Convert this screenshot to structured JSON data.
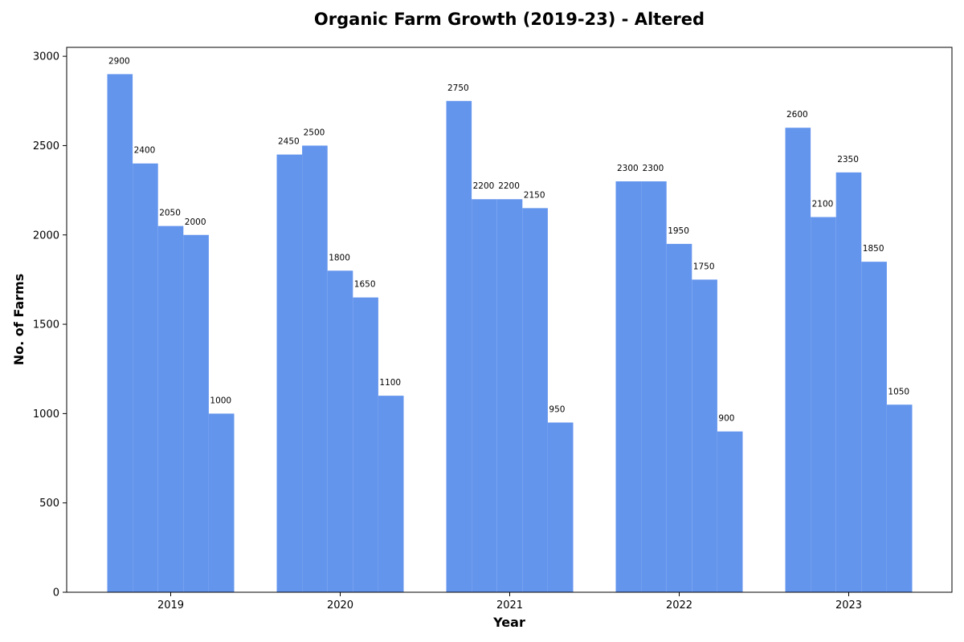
{
  "chart_data": {
    "type": "bar",
    "title": "Organic Farm Growth (2019-23) - Altered",
    "xlabel": "Year",
    "ylabel": "No. of Farms",
    "categories": [
      "2019",
      "2020",
      "2021",
      "2022",
      "2023"
    ],
    "series": [
      {
        "values": [
          2900,
          2450,
          2750,
          2300,
          2600
        ]
      },
      {
        "values": [
          2400,
          2500,
          2200,
          2300,
          2100
        ]
      },
      {
        "values": [
          2050,
          1800,
          2200,
          1950,
          2350
        ]
      },
      {
        "values": [
          2000,
          1650,
          2150,
          1750,
          1850
        ]
      },
      {
        "values": [
          1000,
          1100,
          950,
          900,
          1050
        ]
      }
    ],
    "ylim": [
      0,
      3050
    ],
    "yticks": [
      0,
      500,
      1000,
      1500,
      2000,
      2500,
      3000
    ],
    "bar_color": "#6495ED",
    "grid": false,
    "legend": "none"
  }
}
